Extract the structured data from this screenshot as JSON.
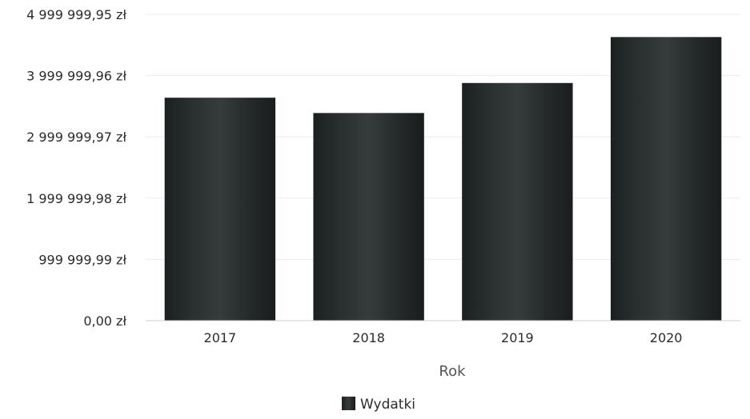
{
  "chart_data": {
    "type": "bar",
    "categories": [
      "2017",
      "2018",
      "2019",
      "2020"
    ],
    "series": [
      {
        "name": "Wydatki",
        "values": [
          3640000,
          3390000,
          3880000,
          4630000
        ]
      }
    ],
    "title": "",
    "xlabel": "Rok",
    "ylabel": "",
    "ylim": [
      0,
      4999999.95
    ],
    "y_tick_values": [
      0,
      999999.99,
      1999999.98,
      2999999.97,
      3999999.96,
      4999999.95
    ],
    "y_tick_labels": [
      "0,00 zł",
      "999 999,99 zł",
      "1 999 999,98 zł",
      "2 999 999,97 zł",
      "3 999 999,96 zł",
      "4 999 999,95 zł"
    ],
    "grid": true,
    "legend_position": "bottom-center",
    "colors": {
      "bar": "#222626",
      "bar_highlight": "#3c4242",
      "grid": "#ececec",
      "axis": "#cfcfcf"
    }
  }
}
